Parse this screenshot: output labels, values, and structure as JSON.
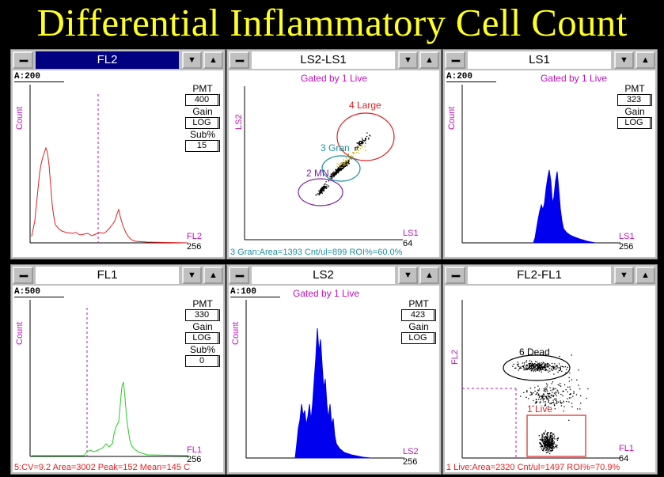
{
  "title": "Differential Inflammatory Cell Count",
  "windows": {
    "fl2": {
      "title": "FL2",
      "a": "A:200",
      "ylabel": "Count",
      "xlabel": "FL2",
      "xmax": "256",
      "ctrl": {
        "pmt": "PMT",
        "pmt_val": "400",
        "gain": "Gain",
        "gain_val": "LOG",
        "sub": "Sub%",
        "sub_val": "15"
      }
    },
    "ls2ls1": {
      "title": "LS2-LS1",
      "gated": "Gated by 1 Live",
      "ylabel": "LS2",
      "xlabel": "LS1",
      "xmax": "64",
      "regions": {
        "large": "4 Large",
        "gran": "3 Gran",
        "mn": "2 MN"
      },
      "stats": "3 Gran:Area=1393 Cnt/ul=899 ROI%=60.0%"
    },
    "ls1": {
      "title": "LS1",
      "a": "A:200",
      "gated": "Gated by 1 Live",
      "ylabel": "Count",
      "xlabel": "LS1",
      "xmax": "256",
      "ctrl": {
        "pmt": "PMT",
        "pmt_val": "323",
        "gain": "Gain",
        "gain_val": "LOG"
      }
    },
    "fl1": {
      "title": "FL1",
      "a": "A:500",
      "ylabel": "Count",
      "xlabel": "FL1",
      "xmax": "256",
      "ctrl": {
        "pmt": "PMT",
        "pmt_val": "330",
        "gain": "Gain",
        "gain_val": "LOG",
        "sub": "Sub%",
        "sub_val": "0"
      },
      "stats": "5:CV=9.2 Area=3002 Peak=152 Mean=145 C"
    },
    "ls2": {
      "title": "LS2",
      "a": "A:100",
      "gated": "Gated by 1 Live",
      "ylabel": "Count",
      "xlabel": "LS2",
      "xmax": "256",
      "ctrl": {
        "pmt": "PMT",
        "pmt_val": "423",
        "gain": "Gain",
        "gain_val": "LOG"
      }
    },
    "fl2fl1": {
      "title": "FL2-FL1",
      "ylabel": "FL2",
      "xlabel": "FL1",
      "xmax": "64",
      "regions": {
        "dead": "6 Dead",
        "live": "1 Live"
      },
      "stats": "1 Live:Area=2320 Cnt/ul=1497 ROI%=70.9%"
    }
  },
  "colors": {
    "title": "#ffff20",
    "fl2": "#e02020",
    "ls": "#0000ee",
    "fl1": "#20d020",
    "label": "#c010c0",
    "stats_red": "#e02020",
    "stats_teal": "#2090a0"
  }
}
